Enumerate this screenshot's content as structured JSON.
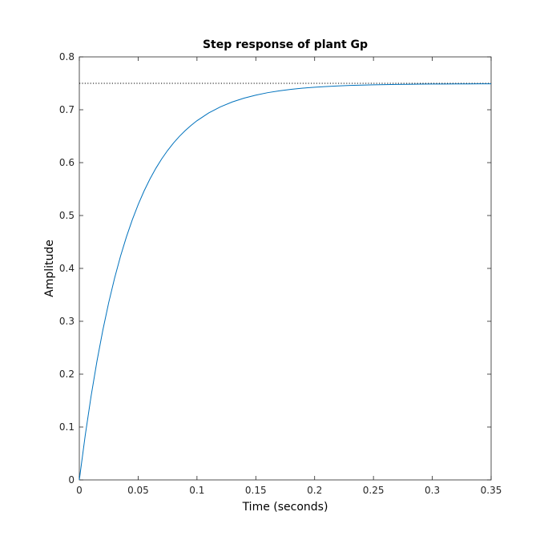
{
  "chart_data": {
    "type": "line",
    "title": "Step response of plant Gp",
    "xlabel": "Time (seconds)",
    "ylabel": "Amplitude",
    "xlim": [
      0,
      0.35
    ],
    "ylim": [
      0,
      0.8
    ],
    "xticks": [
      0,
      0.05,
      0.1,
      0.15,
      0.2,
      0.25,
      0.3,
      0.35
    ],
    "xtick_labels": [
      "0",
      "0.05",
      "0.1",
      "0.15",
      "0.2",
      "0.25",
      "0.3",
      "0.35"
    ],
    "yticks": [
      0,
      0.1,
      0.2,
      0.3,
      0.4,
      0.5,
      0.6,
      0.7,
      0.8
    ],
    "ytick_labels": [
      "0",
      "0.1",
      "0.2",
      "0.3",
      "0.4",
      "0.5",
      "0.6",
      "0.7",
      "0.8"
    ],
    "grid": false,
    "steady_state": 0.75,
    "series": [
      {
        "x": [
          0,
          0.005,
          0.01,
          0.015,
          0.02,
          0.025,
          0.03,
          0.035,
          0.04,
          0.045,
          0.05,
          0.055,
          0.06,
          0.065,
          0.07,
          0.075,
          0.08,
          0.085,
          0.09,
          0.095,
          0.1,
          0.11,
          0.12,
          0.13,
          0.14,
          0.15,
          0.16,
          0.17,
          0.18,
          0.19,
          0.2,
          0.21,
          0.22,
          0.23,
          0.24,
          0.25,
          0.26,
          0.27,
          0.28,
          0.29,
          0.3,
          0.31,
          0.32,
          0.33,
          0.34,
          0.35
        ],
        "y": [
          0,
          0.0839,
          0.1584,
          0.2246,
          0.2833,
          0.3355,
          0.3818,
          0.4229,
          0.4594,
          0.4918,
          0.5206,
          0.5462,
          0.5689,
          0.5891,
          0.607,
          0.6229,
          0.637,
          0.6495,
          0.6606,
          0.6705,
          0.6793,
          0.694,
          0.7056,
          0.7148,
          0.722,
          0.7277,
          0.7323,
          0.7358,
          0.7386,
          0.7409,
          0.7426,
          0.744,
          0.7451,
          0.746,
          0.7466,
          0.7472,
          0.7476,
          0.7479,
          0.7482,
          0.7484,
          0.7486,
          0.7487,
          0.7488,
          0.7489,
          0.749,
          0.7491
        ]
      }
    ]
  },
  "colors": {
    "line": "#0072bd",
    "axes": "#262626",
    "steady_state_line": "#000000"
  }
}
